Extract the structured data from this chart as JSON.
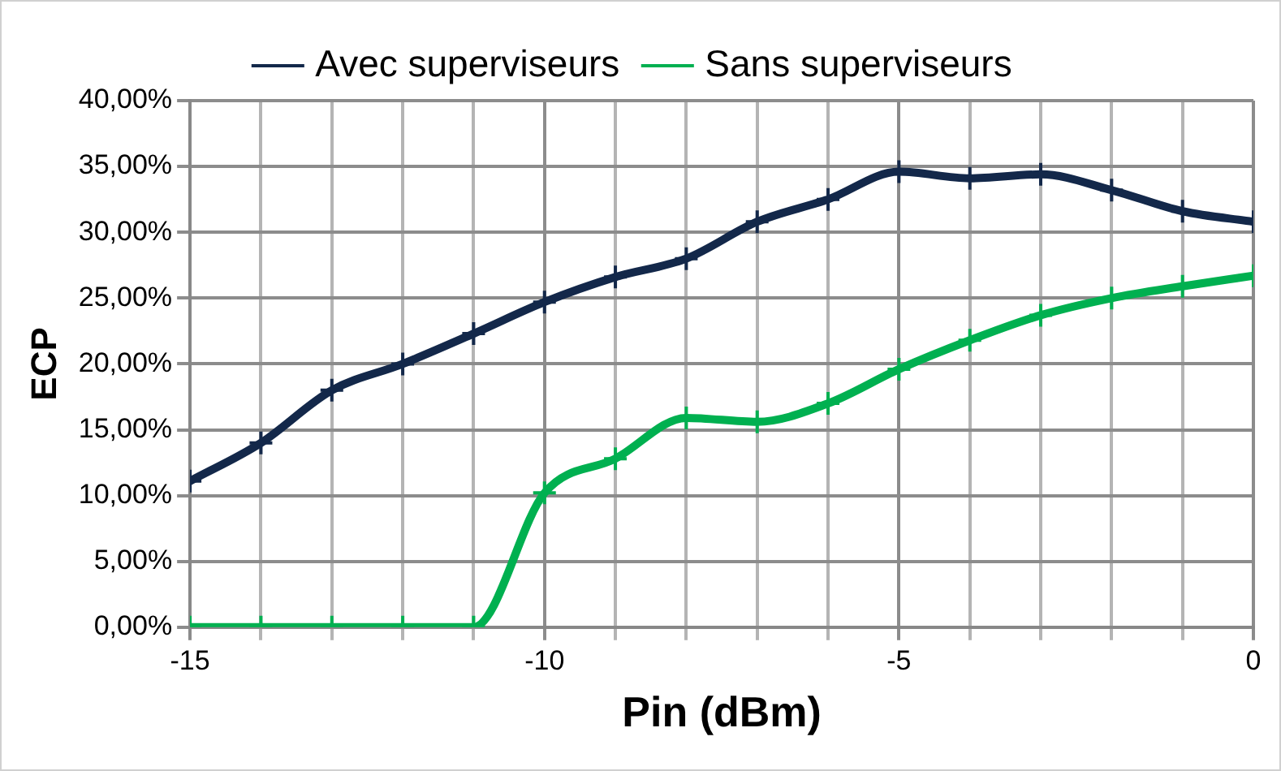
{
  "chart_data": {
    "type": "line",
    "xlabel": "Pin (dBm)",
    "ylabel": "ECP",
    "x": [
      -15,
      -14,
      -13,
      -12,
      -11,
      -10,
      -9,
      -8,
      -7,
      -6,
      -5,
      -4,
      -3,
      -2,
      -1,
      0
    ],
    "series": [
      {
        "name": "Avec superviseurs",
        "color": "#13284a",
        "values": [
          11.1,
          14,
          18,
          20,
          22.3,
          24.7,
          26.6,
          28,
          30.8,
          32.5,
          34.6,
          34.1,
          34.4,
          33.2,
          31.6,
          30.8
        ]
      },
      {
        "name": "Sans superviseurs",
        "color": "#00b050",
        "values": [
          0,
          0,
          0,
          0,
          0,
          10.2,
          12.8,
          15.9,
          15.6,
          17,
          19.6,
          21.8,
          23.7,
          25,
          25.9,
          26.7
        ]
      }
    ],
    "xlim": [
      -15,
      0
    ],
    "xticks": [
      -15,
      {
        "value": -14,
        "label": null
      },
      {
        "value": -13,
        "label": null
      },
      {
        "value": -12,
        "label": null
      },
      {
        "value": -11,
        "label": null
      },
      -10,
      {
        "value": -9,
        "label": null
      },
      {
        "value": -8,
        "label": null
      },
      {
        "value": -7,
        "label": null
      },
      {
        "value": -6,
        "label": null
      },
      -5,
      {
        "value": -4,
        "label": null
      },
      {
        "value": -3,
        "label": null
      },
      {
        "value": -2,
        "label": null
      },
      {
        "value": -1,
        "label": null
      },
      0
    ],
    "ylim": [
      0,
      40
    ],
    "yticks": [
      {
        "value": 0,
        "label": "0,00%"
      },
      {
        "value": 5,
        "label": "5,00%"
      },
      {
        "value": 10,
        "label": "10,00%"
      },
      {
        "value": 15,
        "label": "15,00%"
      },
      {
        "value": 20,
        "label": "20,00%"
      },
      {
        "value": 25,
        "label": "25,00%"
      },
      {
        "value": 30,
        "label": "30,00%"
      },
      {
        "value": 35,
        "label": "35,00%"
      },
      {
        "value": 40,
        "label": "40,00%"
      }
    ],
    "grid": true,
    "legend": "top",
    "marker": "cross",
    "line_style": "solid"
  }
}
